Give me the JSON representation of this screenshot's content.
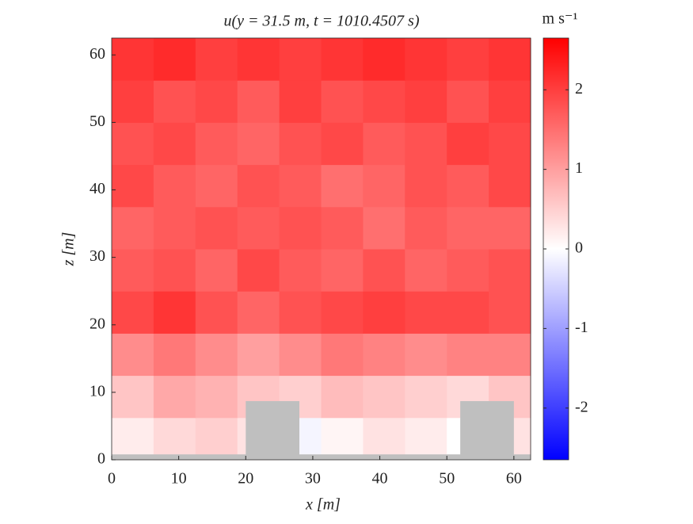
{
  "chart_data": {
    "type": "heatmap",
    "title": "u(y = 31.5 m, t = 1010.4507 s)",
    "xlabel": "x [m]",
    "ylabel": "z [m]",
    "colorbar_label": "m s⁻¹",
    "x": [
      3.125,
      9.375,
      15.625,
      21.875,
      28.125,
      34.375,
      40.625,
      46.875,
      53.125,
      59.375
    ],
    "z": [
      3.125,
      9.375,
      15.625,
      21.875,
      28.125,
      34.375,
      40.625,
      46.875,
      53.125,
      59.375
    ],
    "values": [
      [
        0.2,
        0.4,
        0.5,
        0.3,
        -0.1,
        0.1,
        0.3,
        0.2,
        0.0,
        0.3
      ],
      [
        0.6,
        0.9,
        0.8,
        0.6,
        0.5,
        0.7,
        0.6,
        0.5,
        0.4,
        0.6
      ],
      [
        1.2,
        1.4,
        1.2,
        1.0,
        1.2,
        1.4,
        1.3,
        1.2,
        1.3,
        1.3
      ],
      [
        1.9,
        2.1,
        1.8,
        1.6,
        1.8,
        1.9,
        2.0,
        1.9,
        1.9,
        1.8
      ],
      [
        1.7,
        1.8,
        1.6,
        1.9,
        1.7,
        1.6,
        1.8,
        1.6,
        1.7,
        1.8
      ],
      [
        1.6,
        1.7,
        1.8,
        1.7,
        1.8,
        1.7,
        1.5,
        1.7,
        1.6,
        1.6
      ],
      [
        1.9,
        1.7,
        1.6,
        1.8,
        1.7,
        1.5,
        1.6,
        1.8,
        1.7,
        1.9
      ],
      [
        1.8,
        1.9,
        1.7,
        1.6,
        1.8,
        1.9,
        1.7,
        1.8,
        2.0,
        1.9
      ],
      [
        2.0,
        1.8,
        1.9,
        1.7,
        2.0,
        1.8,
        1.9,
        2.0,
        1.8,
        2.0
      ],
      [
        2.1,
        2.2,
        2.0,
        2.1,
        2.0,
        2.1,
        2.2,
        2.1,
        2.0,
        2.1
      ]
    ],
    "obstacles": [
      {
        "x": [
          0,
          62.5
        ],
        "z": [
          0,
          0.8
        ]
      },
      {
        "x": [
          20,
          28
        ],
        "z": [
          0,
          8.7
        ]
      },
      {
        "x": [
          52,
          60
        ],
        "z": [
          0,
          8.7
        ]
      }
    ],
    "obstacle_color": "#bfbfbf",
    "xlim": [
      0,
      62.5
    ],
    "ylim": [
      0,
      62.5
    ],
    "xticks": [
      0,
      10,
      20,
      30,
      40,
      50,
      60
    ],
    "yticks": [
      0,
      10,
      20,
      30,
      40,
      50,
      60
    ],
    "clim": [
      -2.65,
      2.65
    ],
    "cticks": [
      -2,
      -1,
      0,
      1,
      2
    ],
    "colormap": [
      "#0000ff",
      "#ffffff",
      "#ff0000"
    ]
  }
}
